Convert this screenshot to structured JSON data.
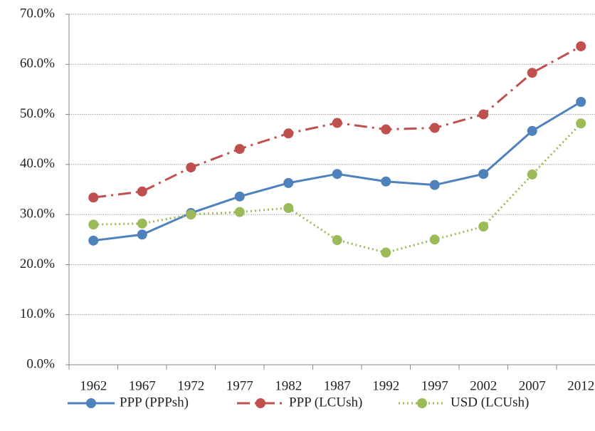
{
  "chart_data": {
    "type": "line",
    "categories": [
      "1962",
      "1967",
      "1972",
      "1977",
      "1982",
      "1987",
      "1992",
      "1997",
      "2002",
      "2007",
      "2012"
    ],
    "series": [
      {
        "name": "PPP (PPPsh)",
        "color": "#4f81bd",
        "dash": "solid",
        "values": [
          24.8,
          26.0,
          30.3,
          33.6,
          36.3,
          38.1,
          36.6,
          35.9,
          38.1,
          46.7,
          52.5
        ]
      },
      {
        "name": "PPP (LCUsh)",
        "color": "#c0504d",
        "dash": "dashdot",
        "values": [
          33.4,
          34.6,
          39.4,
          43.1,
          46.2,
          48.3,
          47.0,
          47.3,
          50.0,
          58.3,
          63.6
        ]
      },
      {
        "name": "USD (LCUsh)",
        "color": "#9bbb59",
        "dash": "dot",
        "values": [
          28.0,
          28.2,
          30.0,
          30.5,
          31.3,
          24.9,
          22.4,
          25.0,
          27.6,
          38.0,
          48.2
        ]
      }
    ],
    "ylim": [
      0,
      70
    ],
    "yticks": [
      {
        "value": 0,
        "label": "0.0%"
      },
      {
        "value": 10,
        "label": "10.0%"
      },
      {
        "value": 20,
        "label": "20.0%"
      },
      {
        "value": 30,
        "label": "30.0%"
      },
      {
        "value": 40,
        "label": "40.0%"
      },
      {
        "value": 50,
        "label": "50.0%"
      },
      {
        "value": 60,
        "label": "60.0%"
      },
      {
        "value": 70,
        "label": "70.0%"
      }
    ],
    "grid": true,
    "legend": "bottom"
  }
}
